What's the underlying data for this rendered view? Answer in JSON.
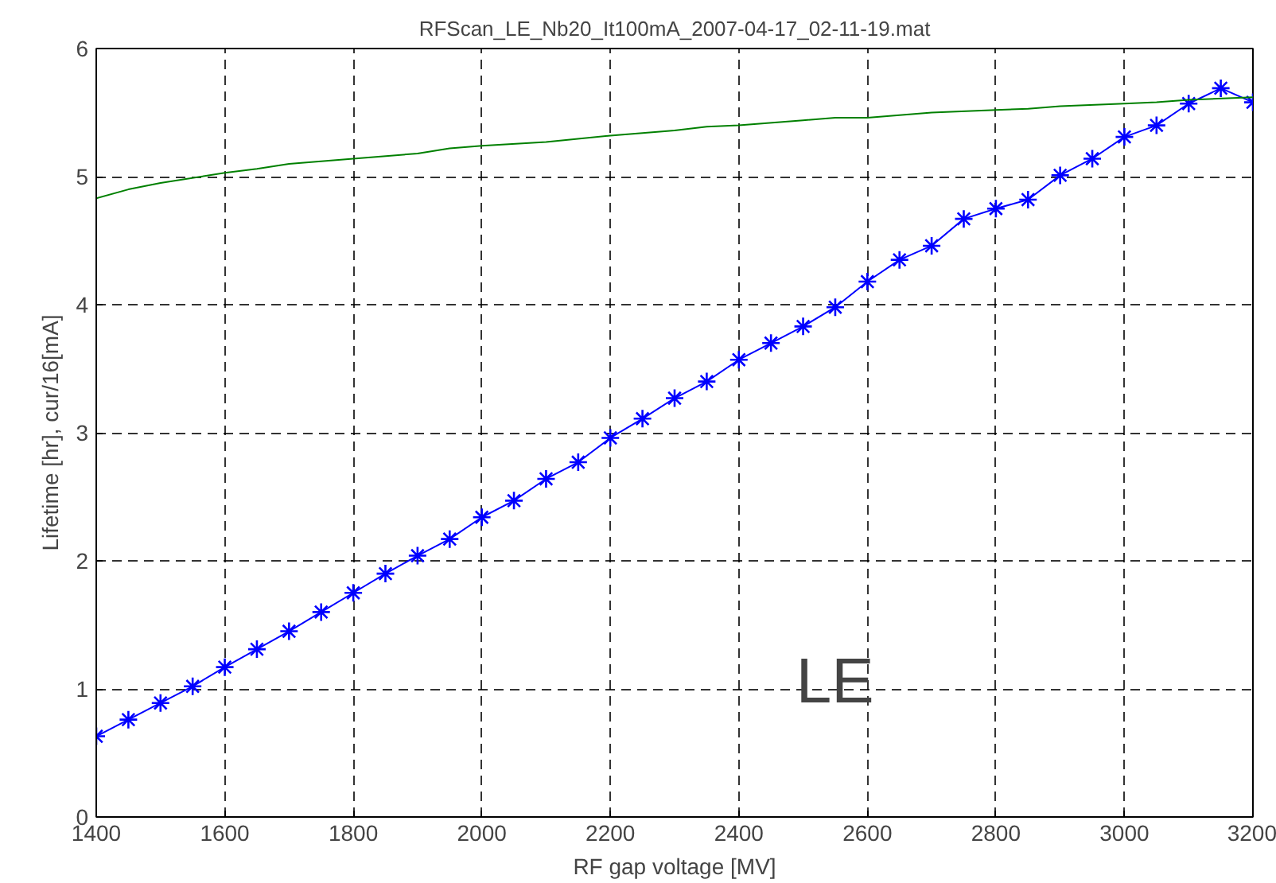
{
  "chart_data": {
    "type": "line",
    "title": "RFScan_LE_Nb20_It100mA_2007-04-17_02-11-19.mat",
    "xlabel": "RF gap voltage [MV]",
    "ylabel": "Lifetime [hr], cur/16[mA]",
    "xlim": [
      1400,
      3200
    ],
    "ylim": [
      0,
      6
    ],
    "xticks": [
      1400,
      1600,
      1800,
      2000,
      2200,
      2400,
      2600,
      2800,
      3000,
      3200
    ],
    "yticks": [
      0,
      1,
      2,
      3,
      4,
      5,
      6
    ],
    "grid": true,
    "annotations": [
      "LE"
    ],
    "series": [
      {
        "color": "#0000ff",
        "marker": "cross",
        "x": [
          1400,
          1450,
          1500,
          1550,
          1600,
          1650,
          1700,
          1750,
          1800,
          1850,
          1900,
          1950,
          2000,
          2050,
          2100,
          2150,
          2200,
          2250,
          2300,
          2350,
          2400,
          2450,
          2500,
          2550,
          2600,
          2650,
          2700,
          2750,
          2800,
          2850,
          2900,
          2950,
          3000,
          3050,
          3100,
          3150,
          3200
        ],
        "values": [
          0.63,
          0.76,
          0.89,
          1.02,
          1.17,
          1.31,
          1.45,
          1.6,
          1.75,
          1.9,
          2.04,
          2.17,
          2.34,
          2.47,
          2.64,
          2.77,
          2.96,
          3.11,
          3.27,
          3.4,
          3.57,
          3.7,
          3.83,
          3.98,
          4.18,
          4.35,
          4.46,
          4.67,
          4.75,
          4.82,
          5.01,
          5.14,
          5.31,
          5.4,
          5.57,
          5.69,
          5.58
        ]
      },
      {
        "color": "#008000",
        "marker": "none",
        "x": [
          1400,
          1450,
          1500,
          1600,
          1650,
          1700,
          1800,
          1900,
          1950,
          2000,
          2100,
          2200,
          2300,
          2350,
          2400,
          2500,
          2550,
          2600,
          2700,
          2800,
          2850,
          2900,
          3000,
          3050,
          3100,
          3200
        ],
        "values": [
          4.83,
          4.9,
          4.95,
          5.03,
          5.06,
          5.1,
          5.14,
          5.18,
          5.22,
          5.24,
          5.27,
          5.32,
          5.36,
          5.39,
          5.4,
          5.44,
          5.46,
          5.46,
          5.5,
          5.52,
          5.53,
          5.55,
          5.57,
          5.58,
          5.6,
          5.62
        ]
      }
    ]
  }
}
